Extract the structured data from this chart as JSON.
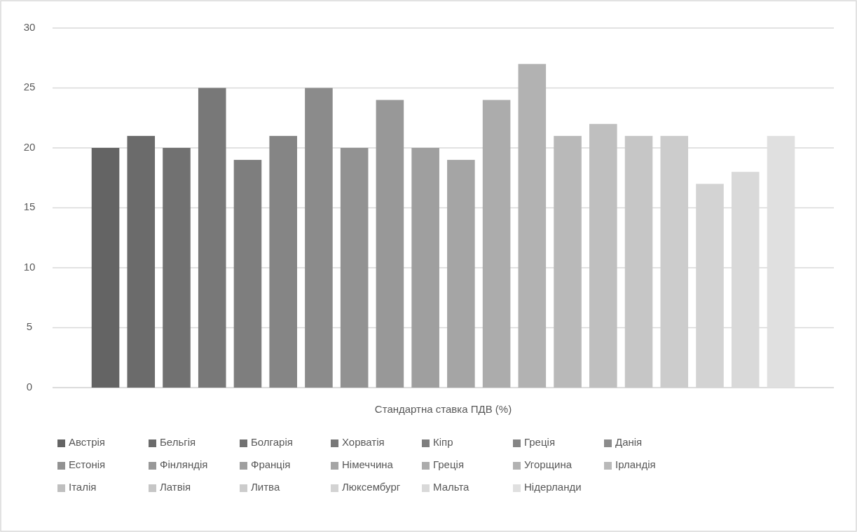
{
  "chart_data": {
    "type": "bar",
    "categories": [
      "Стандартна ставка ПДВ (%)"
    ],
    "series": [
      {
        "name": "Австрія",
        "color": "#646464",
        "values": [
          20
        ]
      },
      {
        "name": "Бельгія",
        "color": "#6b6b6b",
        "values": [
          21
        ]
      },
      {
        "name": "Болгарія",
        "color": "#717171",
        "values": [
          20
        ]
      },
      {
        "name": "Хорватія",
        "color": "#787878",
        "values": [
          25
        ]
      },
      {
        "name": "Кіпр",
        "color": "#7e7e7e",
        "values": [
          19
        ]
      },
      {
        "name": "Греція",
        "color": "#858585",
        "values": [
          21
        ]
      },
      {
        "name": "Данія",
        "color": "#8b8b8b",
        "values": [
          25
        ]
      },
      {
        "name": "Естонія",
        "color": "#929292",
        "values": [
          20
        ]
      },
      {
        "name": "Фінляндія",
        "color": "#989898",
        "values": [
          24
        ]
      },
      {
        "name": "Франція",
        "color": "#9f9f9f",
        "values": [
          20
        ]
      },
      {
        "name": "Німеччина",
        "color": "#a5a5a5",
        "values": [
          19
        ]
      },
      {
        "name": "Греція",
        "color": "#acacac",
        "values": [
          24
        ]
      },
      {
        "name": "Угорщина",
        "color": "#b2b2b2",
        "values": [
          27
        ]
      },
      {
        "name": "Ірландія",
        "color": "#b9b9b9",
        "values": [
          21
        ]
      },
      {
        "name": "Італія",
        "color": "#bfbfbf",
        "values": [
          22
        ]
      },
      {
        "name": "Латвія",
        "color": "#c6c6c6",
        "values": [
          21
        ]
      },
      {
        "name": "Литва",
        "color": "#cccccc",
        "values": [
          21
        ]
      },
      {
        "name": "Люксембург",
        "color": "#d3d3d3",
        "values": [
          17
        ]
      },
      {
        "name": "Мальта",
        "color": "#d9d9d9",
        "values": [
          18
        ]
      },
      {
        "name": "Нідерланди",
        "color": "#e0e0e0",
        "values": [
          21
        ]
      }
    ],
    "ylim": [
      0,
      30
    ],
    "yticks": [
      0,
      5,
      10,
      15,
      20,
      25,
      30
    ],
    "grid": "y",
    "legend": "bottom"
  }
}
